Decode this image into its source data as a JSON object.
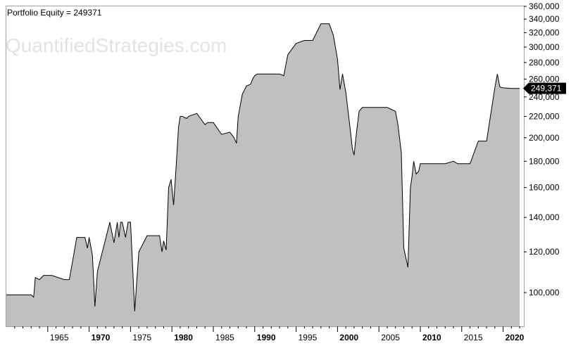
{
  "watermark": "QuantifiedStrategies.com",
  "chart_data": {
    "type": "area",
    "title": "Portfolio Equity = 249371",
    "xlabel": "",
    "ylabel": "",
    "yscale": "log",
    "ylim": [
      86000,
      360000
    ],
    "xlim": [
      1960.0,
      2022.5
    ],
    "y_ticks": [
      {
        "value": 100000,
        "label": "100,000"
      },
      {
        "value": 120000,
        "label": "120,000"
      },
      {
        "value": 140000,
        "label": "140,000"
      },
      {
        "value": 160000,
        "label": "160,000"
      },
      {
        "value": 180000,
        "label": "180,000"
      },
      {
        "value": 200000,
        "label": "200,000"
      },
      {
        "value": 220000,
        "label": "220,000"
      },
      {
        "value": 240000,
        "label": "240,000"
      },
      {
        "value": 260000,
        "label": "260,000"
      },
      {
        "value": 280000,
        "label": "280,000"
      },
      {
        "value": 300000,
        "label": "300,000"
      },
      {
        "value": 320000,
        "label": "320,000"
      },
      {
        "value": 340000,
        "label": "340,000"
      },
      {
        "value": 360000,
        "label": "360,000"
      }
    ],
    "x_ticks": [
      {
        "value": 1965,
        "label": "1965",
        "major": false
      },
      {
        "value": 1970,
        "label": "1970",
        "major": true
      },
      {
        "value": 1975,
        "label": "1975",
        "major": false
      },
      {
        "value": 1980,
        "label": "1980",
        "major": true
      },
      {
        "value": 1985,
        "label": "1985",
        "major": false
      },
      {
        "value": 1990,
        "label": "1990",
        "major": true
      },
      {
        "value": 1995,
        "label": "1995",
        "major": false
      },
      {
        "value": 2000,
        "label": "2000",
        "major": true
      },
      {
        "value": 2005,
        "label": "2005",
        "major": false
      },
      {
        "value": 2010,
        "label": "2010",
        "major": true
      },
      {
        "value": 2015,
        "label": "2015",
        "major": false
      },
      {
        "value": 2020,
        "label": "2020",
        "major": true
      }
    ],
    "last_value_label": "249,371",
    "fill_color": "#c0c0c0",
    "line_color": "#000000",
    "x": [
      1960.0,
      1963.0,
      1963.3,
      1963.5,
      1964.0,
      1964.5,
      1965.5,
      1967.0,
      1967.2,
      1967.6,
      1968.0,
      1968.5,
      1969.5,
      1969.8,
      1970.0,
      1970.4,
      1970.7,
      1971.0,
      1972.5,
      1973.0,
      1973.4,
      1973.6,
      1973.8,
      1974.0,
      1974.4,
      1974.7,
      1975.0,
      1975.5,
      1976.0,
      1977.0,
      1978.5,
      1978.8,
      1979.0,
      1979.3,
      1979.6,
      1979.9,
      1980.2,
      1980.5,
      1980.8,
      1981.0,
      1981.3,
      1981.5,
      1981.8,
      1982.0,
      1983.0,
      1984.0,
      1984.3,
      1984.6,
      1985.0,
      1986.0,
      1987.0,
      1987.5,
      1987.8,
      1988.0,
      1988.5,
      1989.0,
      1989.5,
      1989.8,
      1990.0,
      1990.3,
      1990.6,
      1991.0,
      1992.0,
      1993.0,
      1993.5,
      1994.0,
      1995.0,
      1996.0,
      1997.0,
      1998.0,
      1999.0,
      1999.5,
      2000.0,
      2000.3,
      2000.6,
      2001.0,
      2001.5,
      2001.8,
      2002.0,
      2002.3,
      2002.6,
      2003.0,
      2004.0,
      2005.0,
      2006.0,
      2007.0,
      2007.3,
      2007.7,
      2008.0,
      2008.5,
      2008.8,
      2009.0,
      2009.2,
      2009.5,
      2009.8,
      2010.0,
      2010.5,
      2011.0,
      2012.0,
      2013.0,
      2014.0,
      2014.5,
      2015.0,
      2016.0,
      2017.0,
      2017.5,
      2018.0,
      2019.0,
      2019.3,
      2019.6,
      2020.0,
      2021.0,
      2022.0
    ],
    "y": [
      99000,
      99000,
      98000,
      107000,
      106000,
      108000,
      108000,
      106000,
      106000,
      106000,
      115000,
      128000,
      128000,
      122000,
      128000,
      118000,
      94000,
      110000,
      137000,
      125000,
      137000,
      128000,
      137000,
      137000,
      128000,
      137000,
      137000,
      92000,
      120000,
      129000,
      129000,
      120000,
      126000,
      121000,
      160000,
      166000,
      148000,
      175000,
      210000,
      220000,
      220000,
      219000,
      218000,
      220000,
      223000,
      212000,
      214000,
      214000,
      214000,
      203000,
      205000,
      200000,
      195000,
      220000,
      243000,
      252000,
      254000,
      261000,
      264000,
      266000,
      266000,
      266000,
      266000,
      266000,
      264000,
      290000,
      305000,
      309000,
      309000,
      333000,
      333000,
      316000,
      284000,
      248000,
      266000,
      245000,
      210000,
      190000,
      185000,
      205000,
      225000,
      229000,
      229000,
      229000,
      229000,
      225000,
      212000,
      187000,
      122000,
      112000,
      160000,
      168000,
      180000,
      170000,
      172000,
      178000,
      178000,
      178000,
      178000,
      178000,
      180000,
      178000,
      178000,
      178000,
      197000,
      197000,
      197000,
      250000,
      266000,
      251000,
      250000,
      249371,
      249371
    ]
  }
}
